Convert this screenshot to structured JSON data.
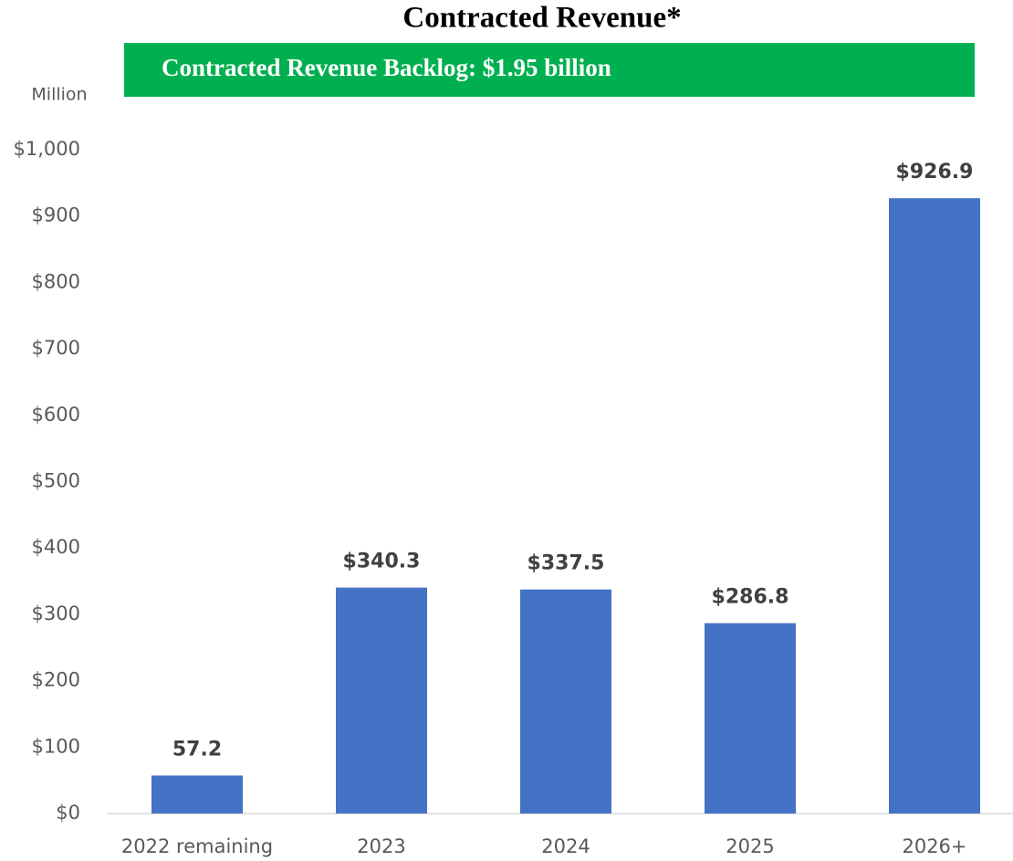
{
  "chart_data": {
    "type": "bar",
    "title": "Contracted Revenue*",
    "subtitle": "Contracted Revenue Backlog: $1.95 billion",
    "y_axis_label": "Million",
    "categories": [
      "2022 remaining",
      "2023",
      "2024",
      "2025",
      "2026+"
    ],
    "values": [
      57.2,
      340.3,
      337.5,
      286.8,
      926.9
    ],
    "value_labels": [
      "57.2",
      "$340.3",
      "$337.5",
      "$286.8",
      "$926.9"
    ],
    "color": "#4472c4",
    "banner_color": "#00b050",
    "ylim": [
      0,
      1000
    ],
    "yticks": [
      {
        "value": 0,
        "label": "$0"
      },
      {
        "value": 100,
        "label": "$100"
      },
      {
        "value": 200,
        "label": "$200"
      },
      {
        "value": 300,
        "label": "$300"
      },
      {
        "value": 400,
        "label": "$400"
      },
      {
        "value": 500,
        "label": "$500"
      },
      {
        "value": 600,
        "label": "$600"
      },
      {
        "value": 700,
        "label": "$700"
      },
      {
        "value": 800,
        "label": "$800"
      },
      {
        "value": 900,
        "label": "$900"
      },
      {
        "value": 1000,
        "label": "$1,000"
      }
    ],
    "grid": false
  }
}
